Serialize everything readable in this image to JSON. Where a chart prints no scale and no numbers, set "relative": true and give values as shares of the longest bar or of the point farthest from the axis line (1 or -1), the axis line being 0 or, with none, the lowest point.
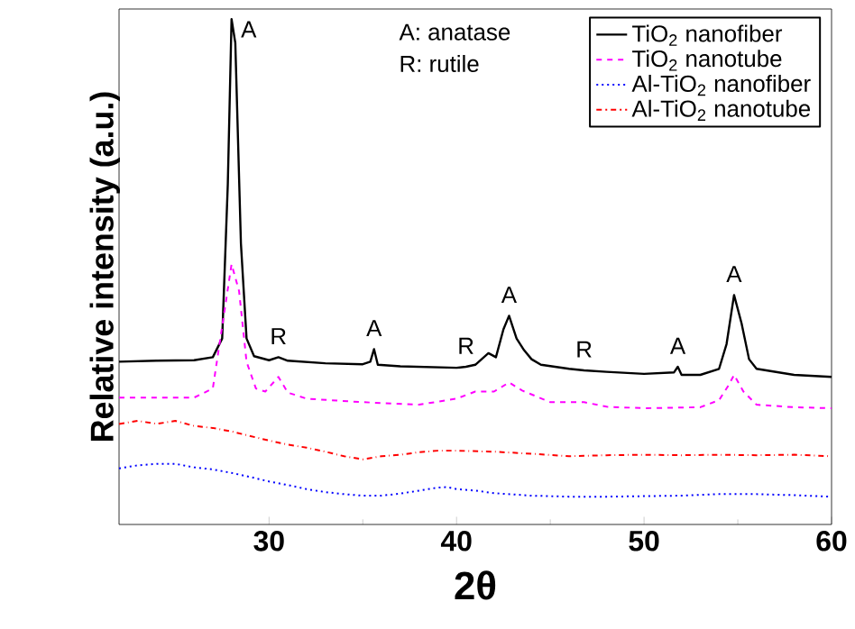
{
  "chart_data": {
    "type": "line",
    "relative": true,
    "xlabel": "2θ",
    "ylabel": "Relative intensity (a.u.)",
    "xlim": [
      22,
      60
    ],
    "xticks": [
      30,
      40,
      50,
      60
    ],
    "legend": "top right",
    "tick_labels": "x",
    "annotations": [
      "A: anatase",
      "R: rutile",
      {
        "text": "A",
        "x": 28,
        "y": 1
      },
      {
        "text": "R",
        "x": 30.5,
        "y": 0.331
      },
      {
        "text": "A",
        "x": 35.6,
        "y": 0.347
      },
      {
        "text": "R",
        "x": 40.5,
        "y": 0.312
      },
      {
        "text": "A",
        "x": 42.8,
        "y": 0.413
      },
      {
        "text": "R",
        "x": 46.8,
        "y": 0.305
      },
      {
        "text": "A",
        "x": 51.8,
        "y": 0.312
      },
      {
        "text": "A",
        "x": 54.8,
        "y": 0.454
      }
    ],
    "series": [
      {
        "name": "TiO$_{2}$ nanofiber",
        "color": "#000000",
        "line_style": "solid",
        "x": [
          22,
          24,
          26,
          27,
          27.5,
          27.8,
          28,
          28.2,
          28.5,
          28.8,
          29.2,
          30,
          30.5,
          31,
          33,
          35,
          35.4,
          35.6,
          35.8,
          37,
          40,
          40.5,
          41,
          41.7,
          42.1,
          42.5,
          42.8,
          43.2,
          43.6,
          44,
          44.5,
          46,
          46.8,
          48,
          50,
          51.6,
          51.8,
          52,
          53,
          54,
          54.4,
          54.8,
          55.2,
          55.6,
          56,
          58,
          60
        ],
        "values": [
          0.322,
          0.324,
          0.325,
          0.331,
          0.368,
          0.673,
          1,
          0.953,
          0.556,
          0.368,
          0.333,
          0.325,
          0.331,
          0.324,
          0.319,
          0.317,
          0.322,
          0.347,
          0.316,
          0.313,
          0.31,
          0.312,
          0.316,
          0.339,
          0.331,
          0.386,
          0.413,
          0.368,
          0.345,
          0.327,
          0.316,
          0.308,
          0.305,
          0.302,
          0.298,
          0.301,
          0.312,
          0.296,
          0.296,
          0.308,
          0.357,
          0.454,
          0.398,
          0.327,
          0.308,
          0.296,
          0.292
        ]
      },
      {
        "name": "TiO$_{2}$ nanotube",
        "color": "#ff00ff",
        "line_style": "dashed",
        "x": [
          22,
          24,
          26,
          27,
          27.5,
          28,
          28.4,
          28.8,
          29.3,
          29.8,
          30.5,
          31,
          32,
          35,
          38,
          40,
          41,
          42,
          42.8,
          43.5,
          45,
          46.8,
          48,
          50,
          53,
          54,
          54.5,
          54.8,
          55.3,
          56,
          58,
          60
        ],
        "values": [
          0.251,
          0.251,
          0.251,
          0.269,
          0.392,
          0.515,
          0.462,
          0.322,
          0.269,
          0.263,
          0.292,
          0.261,
          0.249,
          0.242,
          0.237,
          0.249,
          0.263,
          0.263,
          0.281,
          0.265,
          0.242,
          0.242,
          0.233,
          0.23,
          0.232,
          0.246,
          0.275,
          0.296,
          0.263,
          0.237,
          0.232,
          0.23
        ]
      },
      {
        "name": "Al-TiO$_{2}$ nanofiber",
        "color": "#0000ff",
        "line_style": "dotted",
        "x": [
          22,
          23,
          24,
          25,
          26,
          27,
          28,
          29,
          30,
          31,
          32,
          33,
          34,
          35,
          36,
          37,
          38,
          39,
          39.5,
          40,
          41,
          42,
          44,
          46,
          48,
          50,
          52,
          54,
          56,
          58,
          60
        ],
        "values": [
          0.111,
          0.117,
          0.12,
          0.12,
          0.113,
          0.109,
          0.102,
          0.094,
          0.085,
          0.078,
          0.07,
          0.064,
          0.06,
          0.057,
          0.057,
          0.061,
          0.067,
          0.073,
          0.074,
          0.07,
          0.067,
          0.062,
          0.057,
          0.055,
          0.055,
          0.056,
          0.057,
          0.06,
          0.06,
          0.058,
          0.055
        ]
      },
      {
        "name": "Al-TiO$_{2}$ nanotube",
        "color": "#ff0000",
        "line_style": "dashdot",
        "x": [
          22,
          23,
          24,
          25,
          26,
          27,
          28,
          29,
          30,
          31,
          32,
          33,
          34,
          35,
          36,
          37,
          38,
          39,
          40,
          42,
          44,
          46,
          48,
          50,
          52,
          54,
          56,
          58,
          60
        ],
        "values": [
          0.199,
          0.205,
          0.199,
          0.205,
          0.195,
          0.191,
          0.184,
          0.175,
          0.166,
          0.158,
          0.152,
          0.144,
          0.135,
          0.129,
          0.135,
          0.138,
          0.143,
          0.146,
          0.146,
          0.144,
          0.14,
          0.135,
          0.137,
          0.138,
          0.137,
          0.138,
          0.137,
          0.138,
          0.135
        ]
      }
    ]
  }
}
